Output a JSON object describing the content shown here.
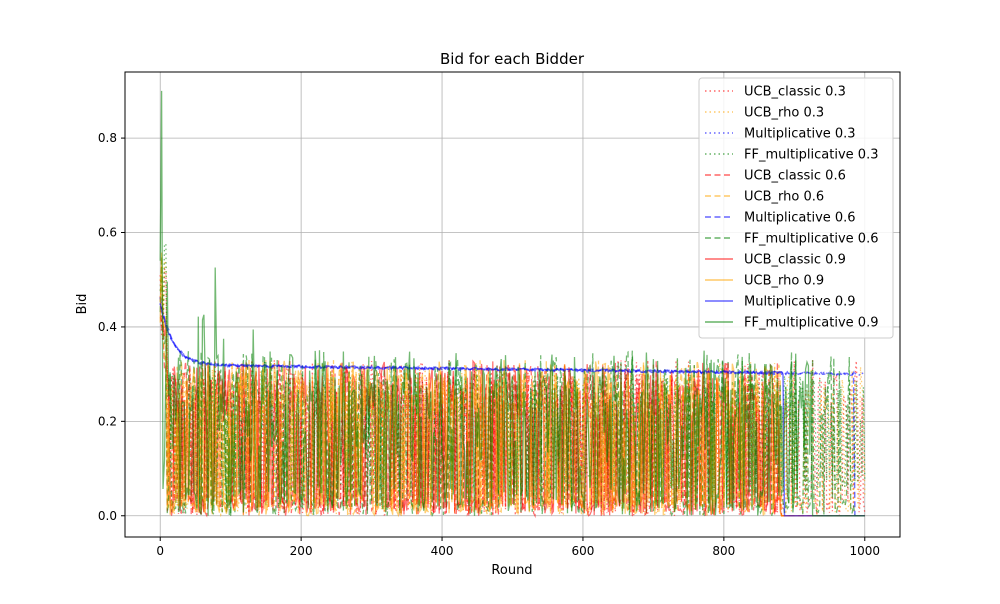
{
  "chart_data": {
    "type": "line",
    "title": "Bid for each Bidder",
    "xlabel": "Round",
    "ylabel": "Bid",
    "xlim": [
      -50,
      1050
    ],
    "ylim": [
      -0.045,
      0.94
    ],
    "xticks": [
      0,
      200,
      400,
      600,
      800,
      1000
    ],
    "yticks": [
      0.0,
      0.2,
      0.4,
      0.6,
      0.8
    ],
    "xtick_labels": [
      "0",
      "200",
      "400",
      "600",
      "800",
      "1000"
    ],
    "ytick_labels": [
      "0.0",
      "0.2",
      "0.4",
      "0.6",
      "0.8"
    ],
    "grid": true,
    "legend_position": "top-right",
    "series": [
      {
        "name": "UCB_classic 0.3",
        "color": "#ff0000",
        "style": "dotted",
        "pattern": "noisy",
        "base": 0.0,
        "high": 0.33,
        "end_round": 1000
      },
      {
        "name": "UCB_rho 0.3",
        "color": "#ffa500",
        "style": "dotted",
        "pattern": "noisy",
        "base": 0.0,
        "high": 0.33,
        "end_round": 1000
      },
      {
        "name": "Multiplicative 0.3",
        "color": "#0000ff",
        "style": "dotted",
        "pattern": "decay",
        "start": 0.45,
        "plateau": 0.3,
        "end_round": 1000
      },
      {
        "name": "FF_multiplicative 0.3",
        "color": "#008000",
        "style": "dotted",
        "pattern": "noisy",
        "base": 0.05,
        "high": 0.3,
        "end_round": 1000
      },
      {
        "name": "UCB_classic 0.6",
        "color": "#ff0000",
        "style": "dashed",
        "pattern": "noisy",
        "base": 0.0,
        "high": 0.33,
        "end_round": 880
      },
      {
        "name": "UCB_rho 0.6",
        "color": "#ffa500",
        "style": "dashed",
        "pattern": "noisy",
        "base": 0.0,
        "high": 0.33,
        "end_round": 880
      },
      {
        "name": "Multiplicative 0.6",
        "color": "#0000ff",
        "style": "dashed",
        "pattern": "decay",
        "start": 0.46,
        "plateau": 0.3,
        "end_round": 985
      },
      {
        "name": "FF_multiplicative 0.6",
        "color": "#008000",
        "style": "dashed",
        "pattern": "noisy",
        "base": 0.0,
        "high": 0.35,
        "end_round": 985
      },
      {
        "name": "UCB_classic 0.9",
        "color": "#ff0000",
        "style": "solid",
        "pattern": "noisy",
        "base": 0.0,
        "high": 0.33,
        "end_round": 880
      },
      {
        "name": "UCB_rho 0.9",
        "color": "#ffa500",
        "style": "solid",
        "pattern": "noisy",
        "base": 0.0,
        "high": 0.33,
        "end_round": 880
      },
      {
        "name": "Multiplicative 0.9",
        "color": "#0000ff",
        "style": "solid",
        "pattern": "decay",
        "start": 0.45,
        "plateau": 0.3,
        "end_round": 885
      },
      {
        "name": "FF_multiplicative 0.9",
        "color": "#008000",
        "style": "solid",
        "pattern": "spiky",
        "base": 0.0,
        "high": 0.9,
        "end_round": 925
      }
    ]
  }
}
